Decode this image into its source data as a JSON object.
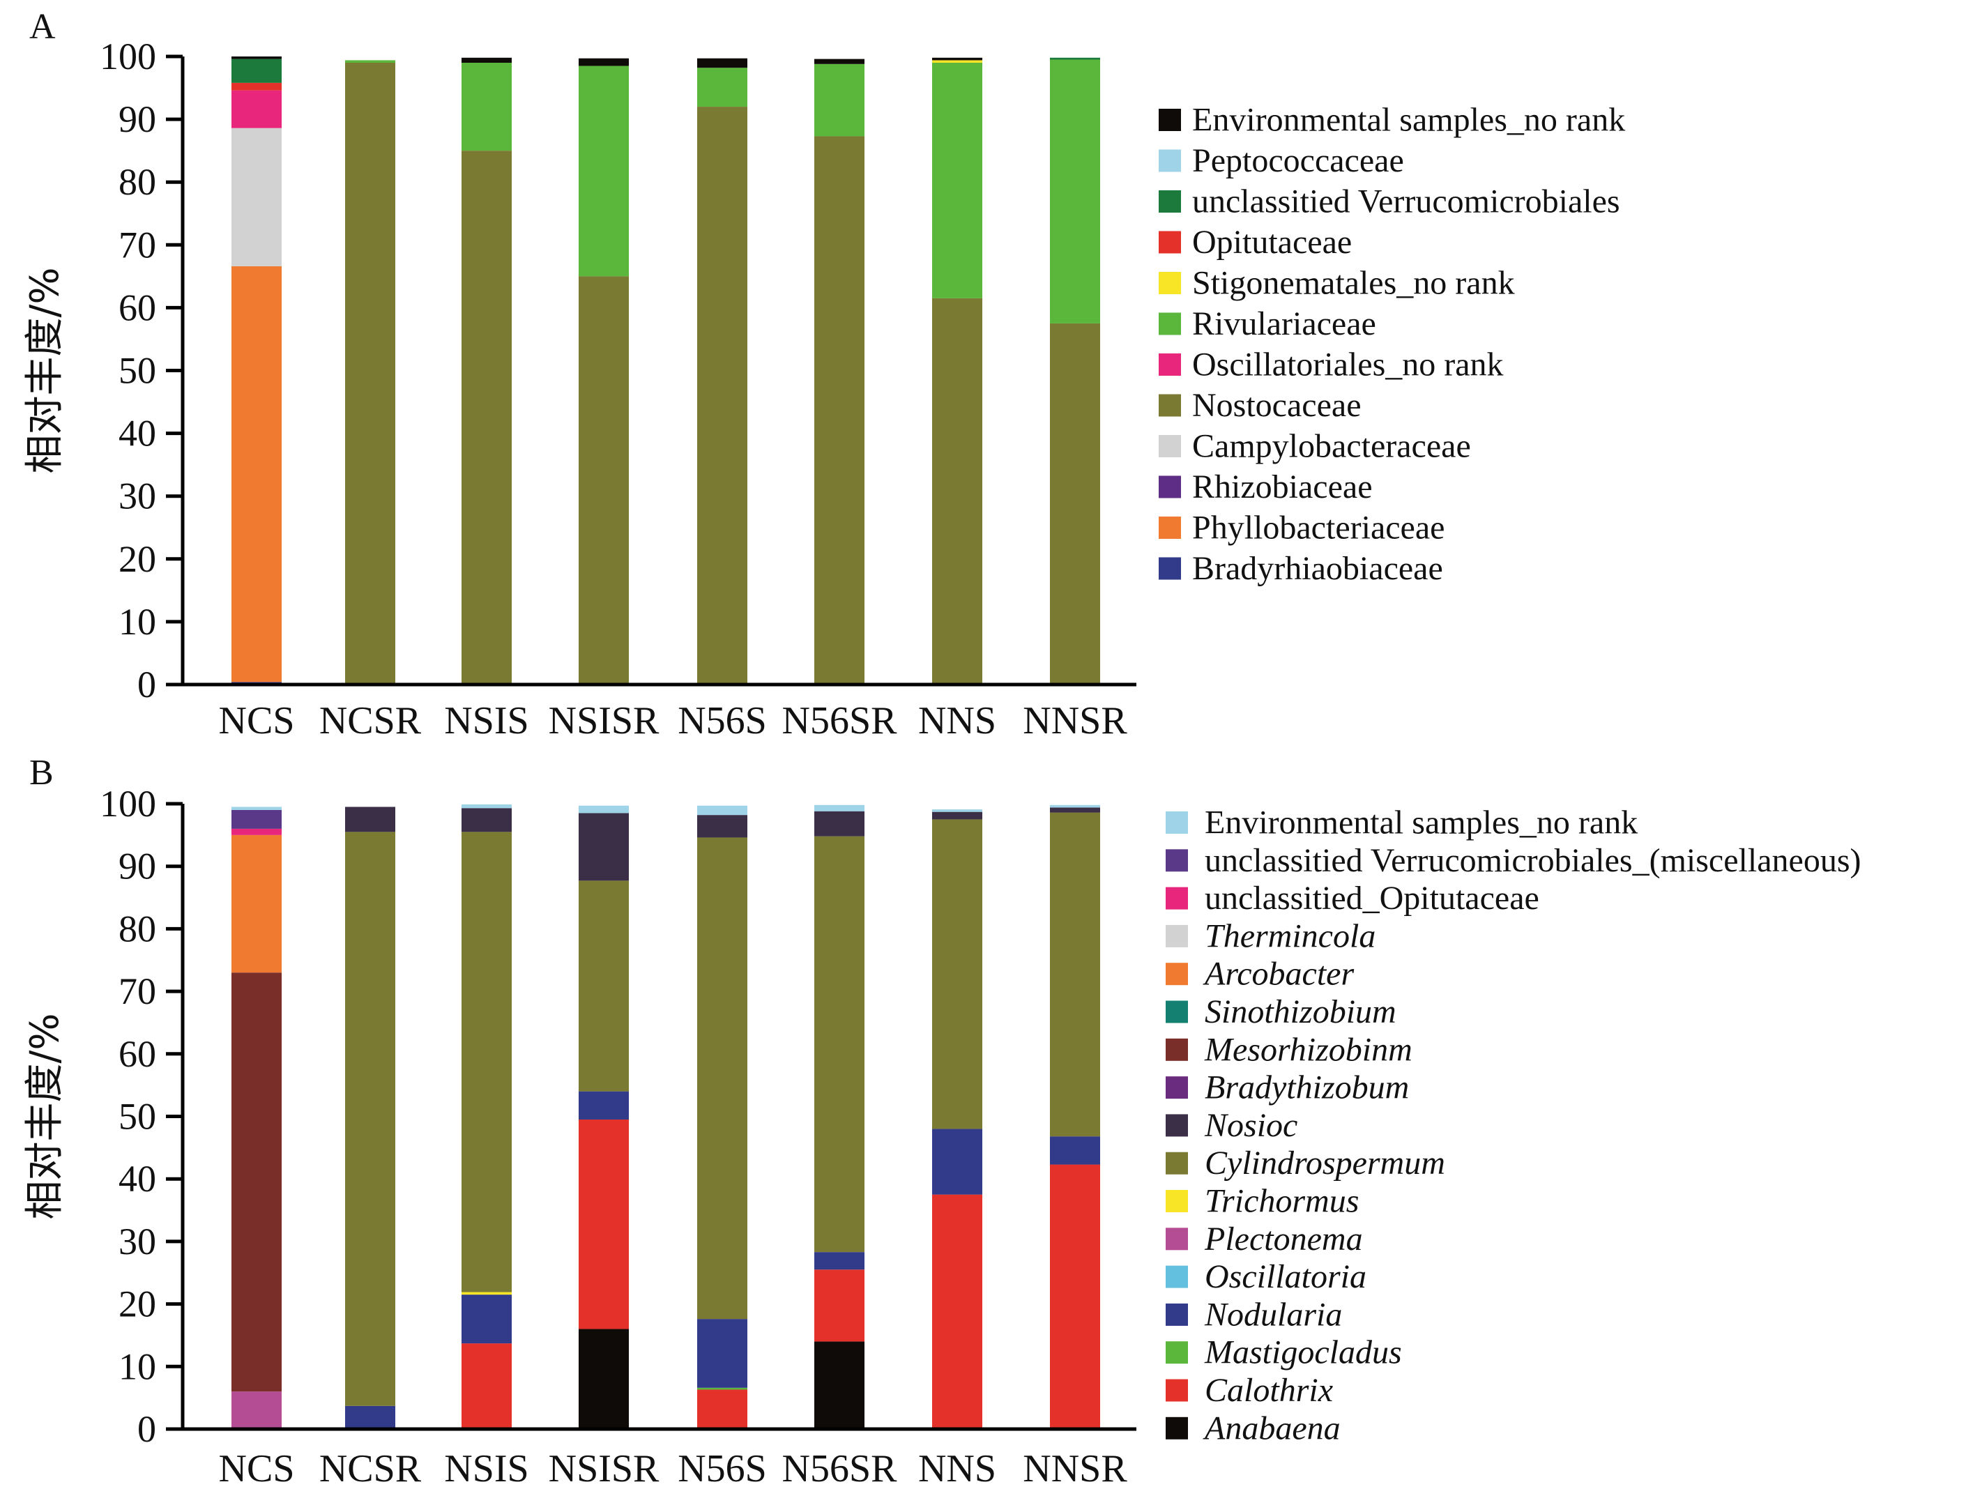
{
  "chart_data": [
    {
      "panel": "A",
      "type": "bar",
      "stacked": true,
      "ylabel": "相对丰度/%",
      "ylim": [
        0,
        100
      ],
      "yticks": [
        "0",
        "10",
        "20",
        "30",
        "40",
        "50",
        "60",
        "70",
        "80",
        "90",
        "100"
      ],
      "categories": [
        "NCS",
        "NCSR",
        "NSIS",
        "NSISR",
        "N56S",
        "N56SR",
        "NNS",
        "NNSR"
      ],
      "legend_italic": false,
      "series": [
        {
          "name": "Bradyrhiaobiaceae",
          "color": "#323a8a",
          "values": [
            0.4,
            0,
            0,
            0,
            0,
            0,
            0,
            0
          ]
        },
        {
          "name": "Phyllobacteriaceae",
          "color": "#ef7a30",
          "values": [
            66.2,
            0,
            0,
            0,
            0,
            0,
            0,
            0
          ]
        },
        {
          "name": "Rhizobiaceae",
          "color": "#5e2d86",
          "values": [
            0,
            0,
            0,
            0,
            0,
            0,
            0,
            0
          ]
        },
        {
          "name": "Campylobacteraceae",
          "color": "#d2d2d2",
          "values": [
            22.0,
            0,
            0,
            0,
            0,
            0,
            0,
            0
          ]
        },
        {
          "name": "Nostocaceae",
          "color": "#7a7a33",
          "values": [
            0,
            99.0,
            85.0,
            65.0,
            92.0,
            87.3,
            61.5,
            57.5
          ]
        },
        {
          "name": "Oscillatoriales_no rank",
          "color": "#e8267b",
          "values": [
            6.0,
            0,
            0,
            0,
            0,
            0,
            0,
            0
          ]
        },
        {
          "name": "Rivulariaceae",
          "color": "#5bb63c",
          "values": [
            0,
            0.4,
            14.0,
            33.5,
            6.2,
            11.5,
            37.5,
            42.0
          ]
        },
        {
          "name": "Stigonematales_no rank",
          "color": "#f8e626",
          "values": [
            0,
            0,
            0,
            0,
            0,
            0,
            0.4,
            0
          ]
        },
        {
          "name": "Opitutaceae",
          "color": "#e4322b",
          "values": [
            1.2,
            0,
            0,
            0,
            0,
            0,
            0,
            0
          ]
        },
        {
          "name": "unclassitied Verrucomicrobiales",
          "color": "#1d7a3d",
          "values": [
            3.8,
            0,
            0,
            0,
            0,
            0,
            0,
            0.3
          ]
        },
        {
          "name": "Peptococcaceae",
          "color": "#9ed3e8",
          "values": [
            0,
            0,
            0,
            0,
            0,
            0,
            0,
            0
          ]
        },
        {
          "name": "Environmental samples_no rank",
          "color": "#0f0b08",
          "values": [
            0.4,
            0,
            0.8,
            1.2,
            1.5,
            0.8,
            0.4,
            0
          ]
        }
      ]
    },
    {
      "panel": "B",
      "type": "bar",
      "stacked": true,
      "ylabel": "相对丰度/%",
      "ylim": [
        0,
        100
      ],
      "yticks": [
        "0",
        "10",
        "20",
        "30",
        "40",
        "50",
        "60",
        "70",
        "80",
        "90",
        "100"
      ],
      "categories": [
        "NCS",
        "NCSR",
        "NSIS",
        "NSISR",
        "N56S",
        "N56SR",
        "NNS",
        "NNSR"
      ],
      "legend_italic_from": 3,
      "series": [
        {
          "name": "Anabaena",
          "color": "#0f0b08",
          "values": [
            0,
            0,
            0,
            16.0,
            0,
            14.0,
            0,
            0
          ]
        },
        {
          "name": "Calothrix",
          "color": "#e4322b",
          "values": [
            0,
            0,
            13.7,
            33.5,
            6.3,
            11.5,
            37.5,
            42.3
          ]
        },
        {
          "name": "Mastigocladus",
          "color": "#5bb63c",
          "values": [
            0,
            0,
            0,
            0,
            0.3,
            0,
            0,
            0
          ]
        },
        {
          "name": "Nodularia",
          "color": "#323a8a",
          "values": [
            0,
            3.7,
            7.8,
            4.5,
            11.0,
            2.8,
            10.5,
            4.5
          ]
        },
        {
          "name": "Oscillatoria",
          "color": "#63c0de",
          "values": [
            0,
            0,
            0,
            0,
            0,
            0,
            0,
            0
          ]
        },
        {
          "name": "Plectonema",
          "color": "#b54d94",
          "values": [
            6.0,
            0,
            0,
            0,
            0,
            0,
            0,
            0
          ]
        },
        {
          "name": "Trichormus",
          "color": "#f8e626",
          "values": [
            0,
            0,
            0.4,
            0,
            0,
            0,
            0,
            0
          ]
        },
        {
          "name": "Cylindrospermum",
          "color": "#7a7a33",
          "values": [
            0,
            91.8,
            73.6,
            33.7,
            77.0,
            66.5,
            49.5,
            51.8
          ]
        },
        {
          "name": "Nosioc",
          "color": "#3b2e47",
          "values": [
            0,
            4.0,
            3.8,
            10.8,
            3.6,
            4.0,
            1.2,
            0.8
          ]
        },
        {
          "name": "Bradythizobum",
          "color": "#6a2c7e",
          "values": [
            0,
            0,
            0,
            0,
            0,
            0,
            0,
            0
          ]
        },
        {
          "name": "Mesorhizobinm",
          "color": "#7a2e2a",
          "values": [
            67.0,
            0,
            0,
            0,
            0,
            0,
            0,
            0
          ]
        },
        {
          "name": "Sinothizobium",
          "color": "#138072",
          "values": [
            0,
            0,
            0,
            0,
            0,
            0,
            0,
            0
          ]
        },
        {
          "name": "Arcobacter",
          "color": "#ef7a30",
          "values": [
            22.0,
            0,
            0,
            0,
            0,
            0,
            0,
            0
          ]
        },
        {
          "name": "Thermincola",
          "color": "#d2d2d2",
          "values": [
            0,
            0,
            0,
            0,
            0,
            0,
            0,
            0
          ]
        },
        {
          "name": "unclassitied_Opitutaceae",
          "color": "#e8267b",
          "values": [
            1.0,
            0,
            0,
            0,
            0,
            0,
            0,
            0
          ]
        },
        {
          "name": "unclassitied Verrucomicrobiales_(miscellaneous)",
          "color": "#5a3a88",
          "values": [
            3.0,
            0,
            0,
            0,
            0,
            0,
            0,
            0
          ]
        },
        {
          "name": "Environmental samples_no rank",
          "color": "#9ed3e8",
          "values": [
            0.5,
            0,
            0.6,
            1.2,
            1.5,
            1.0,
            0.4,
            0.4
          ]
        }
      ]
    }
  ]
}
